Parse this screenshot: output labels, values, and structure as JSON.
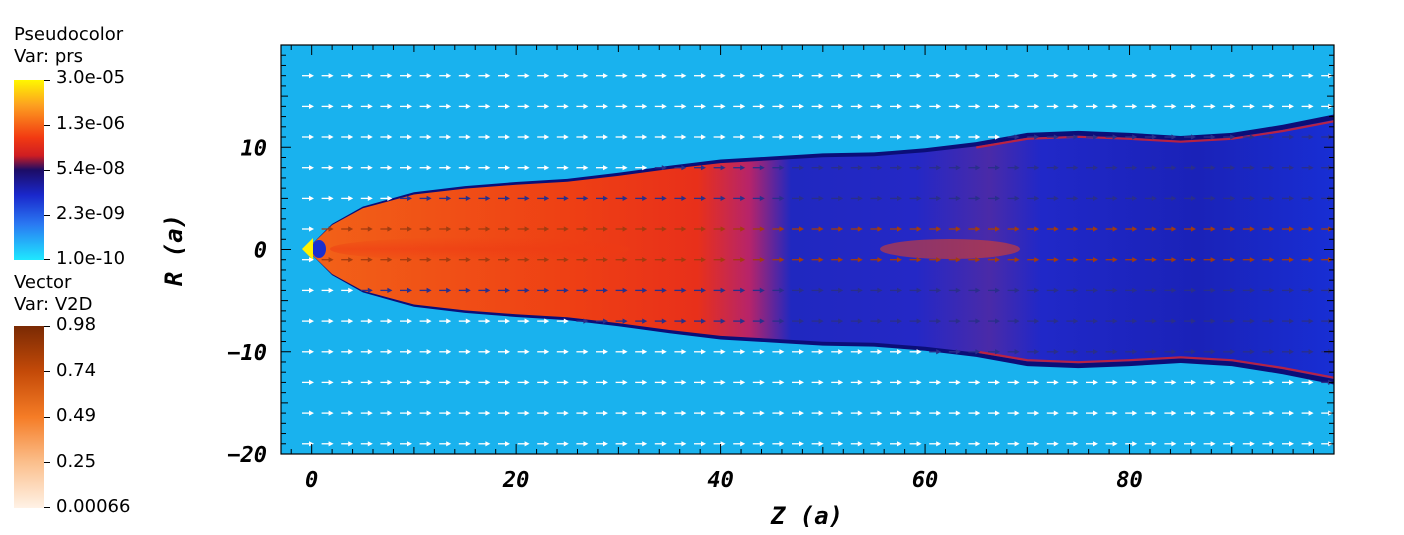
{
  "legend": {
    "pseudocolor": {
      "title": "Pseudocolor",
      "var": "Var: prs",
      "labels": [
        "3.0e-05",
        "1.3e-06",
        "5.4e-08",
        "2.3e-09",
        "1.0e-10"
      ]
    },
    "vector": {
      "title": "Vector",
      "var": "Var: V2D",
      "labels": [
        "0.98",
        "0.74",
        "0.49",
        "0.25",
        "0.00066"
      ]
    }
  },
  "chart_data": {
    "type": "heatmap",
    "title": "",
    "xlabel": "Z (a)",
    "ylabel": "R (a)",
    "xlim": [
      -3,
      100
    ],
    "ylim": [
      -20,
      20
    ],
    "xticks": [
      0,
      20,
      40,
      60,
      80
    ],
    "xtick_labels": [
      "0",
      "20",
      "40",
      "60",
      "80"
    ],
    "yticks": [
      -20,
      -10,
      0,
      10
    ],
    "ytick_labels": [
      "−20",
      "−10",
      "0",
      "10"
    ],
    "variables": {
      "pseudocolor": "prs",
      "vector": "V2D"
    },
    "colors": {
      "ambient": "#19b2ee",
      "jet_core": "#ee3a14",
      "cocoon": "#1d2bd4",
      "vector_arrow": "#ffffff"
    },
    "jet_boundary": {
      "z": [
        0,
        2,
        5,
        10,
        15,
        20,
        25,
        30,
        35,
        40,
        45,
        50,
        55,
        60,
        65,
        70,
        75,
        80,
        85,
        90,
        95,
        100
      ],
      "r_upper": [
        0.5,
        2.5,
        4.2,
        5.6,
        6.2,
        6.6,
        6.9,
        7.5,
        8.2,
        8.8,
        9.1,
        9.4,
        9.5,
        9.9,
        10.5,
        11.4,
        11.6,
        11.4,
        11.1,
        11.4,
        12.2,
        13.2
      ],
      "r_lower": [
        -0.5,
        -2.5,
        -4.2,
        -5.6,
        -6.2,
        -6.6,
        -6.9,
        -7.5,
        -8.2,
        -8.8,
        -9.1,
        -9.4,
        -9.5,
        -9.9,
        -10.5,
        -11.4,
        -11.6,
        -11.4,
        -11.1,
        -11.4,
        -12.2,
        -13.2
      ]
    },
    "cocoon_start_z": 42,
    "vector_rows_r": [
      17,
      14,
      11,
      8,
      5,
      2,
      -1,
      -4,
      -7,
      -10,
      -13,
      -16,
      -19
    ]
  }
}
